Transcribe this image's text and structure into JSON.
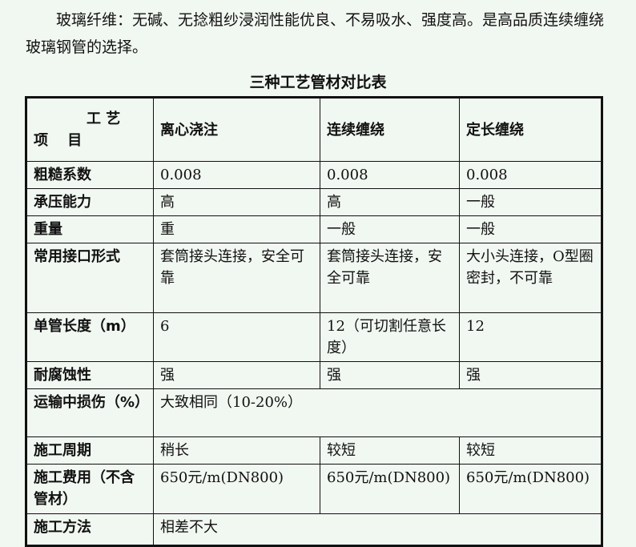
{
  "paragraph": {
    "line": "玻璃纤维：无碱、无捻粗纱浸润性能优良、不易吸水、强度高。是高品质连续缠绕玻璃钢管的选择。"
  },
  "table": {
    "title": "三种工艺管材对比表",
    "corner_top": "工 艺",
    "corner_bottom": "项　 目",
    "headers": [
      "离心浇注",
      "连续缠绕",
      "定长缠绕"
    ],
    "rows": [
      {
        "label": "粗糙系数",
        "cells": [
          "0.008",
          "0.008",
          "0.008"
        ]
      },
      {
        "label": "承压能力",
        "cells": [
          "高",
          "高",
          "一般"
        ]
      },
      {
        "label": "重量",
        "cells": [
          "重",
          "一般",
          "一般"
        ]
      },
      {
        "label": "常用接口形式",
        "cells": [
          "套筒接头连接，安全可靠",
          "套筒接头连接，安全可靠",
          "大小头连接，O型圈密封，不可靠"
        ]
      },
      {
        "label": "单管长度（m）",
        "cells": [
          "6",
          "12（可切割任意长度）",
          "12"
        ]
      },
      {
        "label": "耐腐蚀性",
        "cells": [
          "强",
          "强",
          "强"
        ]
      },
      {
        "label": "运输中损伤（%）",
        "merged": "大致相同（10-20%）"
      },
      {
        "label": "施工周期",
        "cells": [
          "稍长",
          "较短",
          "较短"
        ]
      },
      {
        "label": "施工费用（不含管材）",
        "cells": [
          "650元/m(DN800)",
          "650元/m(DN800)",
          "650元/m(DN800)"
        ]
      },
      {
        "label": "施工方法",
        "merged": "相差不大"
      }
    ]
  }
}
